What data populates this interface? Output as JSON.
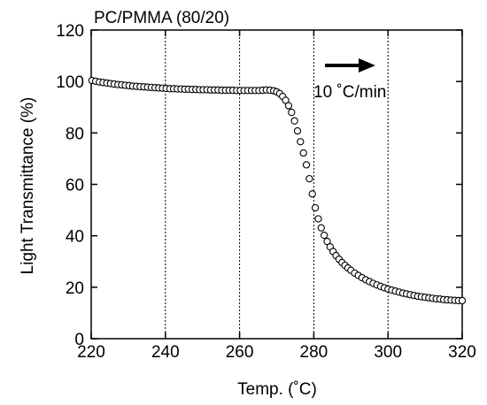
{
  "chart_data": {
    "type": "scatter",
    "title": "PC/PMMA (80/20)",
    "xlabel": "Temp. (˚C)",
    "ylabel": "Light Transmittance (%)",
    "xlim": [
      220,
      320
    ],
    "ylim": [
      0,
      120
    ],
    "xticks": [
      220,
      240,
      260,
      280,
      300,
      320
    ],
    "yticks": [
      0,
      20,
      40,
      60,
      80,
      100,
      120
    ],
    "grid": "vertical dotted lines at x ticks",
    "annotation": {
      "text": "10 ˚C/min",
      "arrow": "right"
    },
    "marker": "open-circle",
    "series": [
      {
        "x": [
          220.2,
          221.2,
          222.2,
          223.2,
          224.2,
          225.2,
          226.2,
          227.2,
          228.2,
          229.2,
          230.2,
          231.2,
          232.2,
          233.2,
          234.2,
          235.2,
          236.2,
          237.2,
          238.2,
          239.2,
          240.2,
          241.2,
          242.2,
          243.2,
          244.2,
          245.2,
          246.2,
          247.2,
          248.2,
          249.2,
          250.2,
          251.2,
          252.2,
          253.2,
          254.2,
          255.2,
          256.2,
          257.2,
          258.2,
          259.2,
          260.2,
          261.2,
          262.2,
          263.2,
          264.2,
          265.2,
          266.2,
          267.2,
          268.2,
          269.2,
          270.0,
          270.8,
          271.6,
          272.4,
          273.2,
          274.0,
          274.8,
          275.6,
          276.4,
          277.2,
          278.0,
          278.8,
          279.6,
          280.4,
          281.2,
          282.0,
          282.8,
          283.6,
          284.4,
          285.2,
          286.0,
          286.8,
          287.6,
          288.4,
          289.2,
          290.0,
          291.0,
          292.0,
          293.0,
          294.0,
          295.0,
          296.0,
          297.0,
          298.0,
          299.0,
          300.0,
          301.0,
          302.0,
          303.0,
          304.0,
          305.0,
          306.0,
          307.0,
          308.0,
          309.0,
          310.0,
          311.0,
          312.0,
          313.0,
          314.0,
          315.0,
          316.0,
          317.0,
          318.0,
          319.0,
          320.0
        ],
        "y": [
          100.4,
          100.1,
          99.8,
          99.6,
          99.4,
          99.2,
          99.0,
          98.8,
          98.7,
          98.5,
          98.4,
          98.2,
          98.1,
          98.0,
          97.9,
          97.8,
          97.7,
          97.6,
          97.5,
          97.4,
          97.3,
          97.2,
          97.2,
          97.1,
          97.1,
          97.0,
          97.0,
          96.9,
          96.9,
          96.8,
          96.8,
          96.8,
          96.7,
          96.7,
          96.7,
          96.6,
          96.6,
          96.6,
          96.6,
          96.5,
          96.5,
          96.5,
          96.5,
          96.5,
          96.5,
          96.5,
          96.6,
          96.7,
          96.6,
          96.4,
          96.0,
          95.3,
          94.2,
          92.7,
          90.6,
          88.0,
          84.7,
          80.8,
          76.6,
          72.2,
          67.6,
          62.2,
          56.3,
          50.9,
          46.6,
          43.1,
          40.2,
          37.8,
          35.7,
          33.9,
          32.3,
          30.9,
          29.6,
          28.5,
          27.5,
          26.6,
          25.5,
          24.6,
          23.7,
          22.9,
          22.2,
          21.5,
          20.9,
          20.3,
          19.8,
          19.3,
          18.9,
          18.5,
          18.1,
          17.7,
          17.4,
          17.1,
          16.8,
          16.5,
          16.3,
          16.1,
          15.9,
          15.7,
          15.5,
          15.4,
          15.2,
          15.1,
          15.0,
          14.9,
          14.8,
          14.8
        ]
      }
    ]
  }
}
